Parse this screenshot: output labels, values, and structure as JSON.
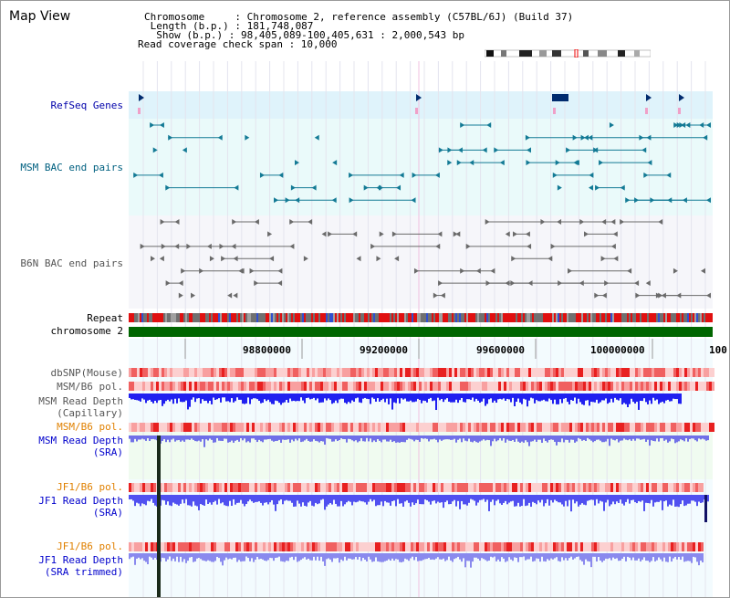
{
  "view_title": "Map View",
  "info": {
    "line1": "Chromosome     : Chromosome 2, reference assembly (C57BL/6J) (Build 37)",
    "line2": " Length (b.p.) : 181,748,087",
    "line3": "  Show (b.p.) : 98,405,089-100,405,631 : 2,000,543 bp",
    "line4": "Read coverage check span : 10,000"
  },
  "tracks": {
    "refseq": "RefSeq Genes",
    "msm_bac": "MSM BAC end pairs",
    "b6n_bac": "B6N BAC end pairs",
    "repeat": "Repeat",
    "chromosome": "chromosome 2",
    "dbsnp": "dbSNP(Mouse)",
    "msm_b6_pol_1": "MSM/B6 pol.",
    "msm_depth_cap_1": "MSM Read Depth",
    "msm_depth_cap_2": "(Capillary)",
    "msm_b6_pol_2": "MSM/B6 pol.",
    "msm_depth_sra_1": "MSM Read Depth",
    "msm_depth_sra_2": "(SRA)",
    "jf1_b6_pol_1": "JF1/B6 pol.",
    "jf1_depth_sra_1": "JF1 Read Depth",
    "jf1_depth_sra_2": "(SRA)",
    "jf1_b6_pol_2": "JF1/B6 pol.",
    "jf1_depth_trim_1": "JF1 Read Depth",
    "jf1_depth_trim_2": "(SRA trimmed)"
  },
  "ruler": {
    "ticks": [
      "98800000",
      "99200000",
      "99600000",
      "100000000",
      "100"
    ]
  },
  "colors": {
    "refseq_label": "#0000aa",
    "msm_label": "#006080",
    "b6n_label": "#555555",
    "pol_label": "#e08000",
    "depth_label": "#0000cc",
    "chromosome_green": "#006600",
    "depth_blue": "#4040ff"
  }
}
